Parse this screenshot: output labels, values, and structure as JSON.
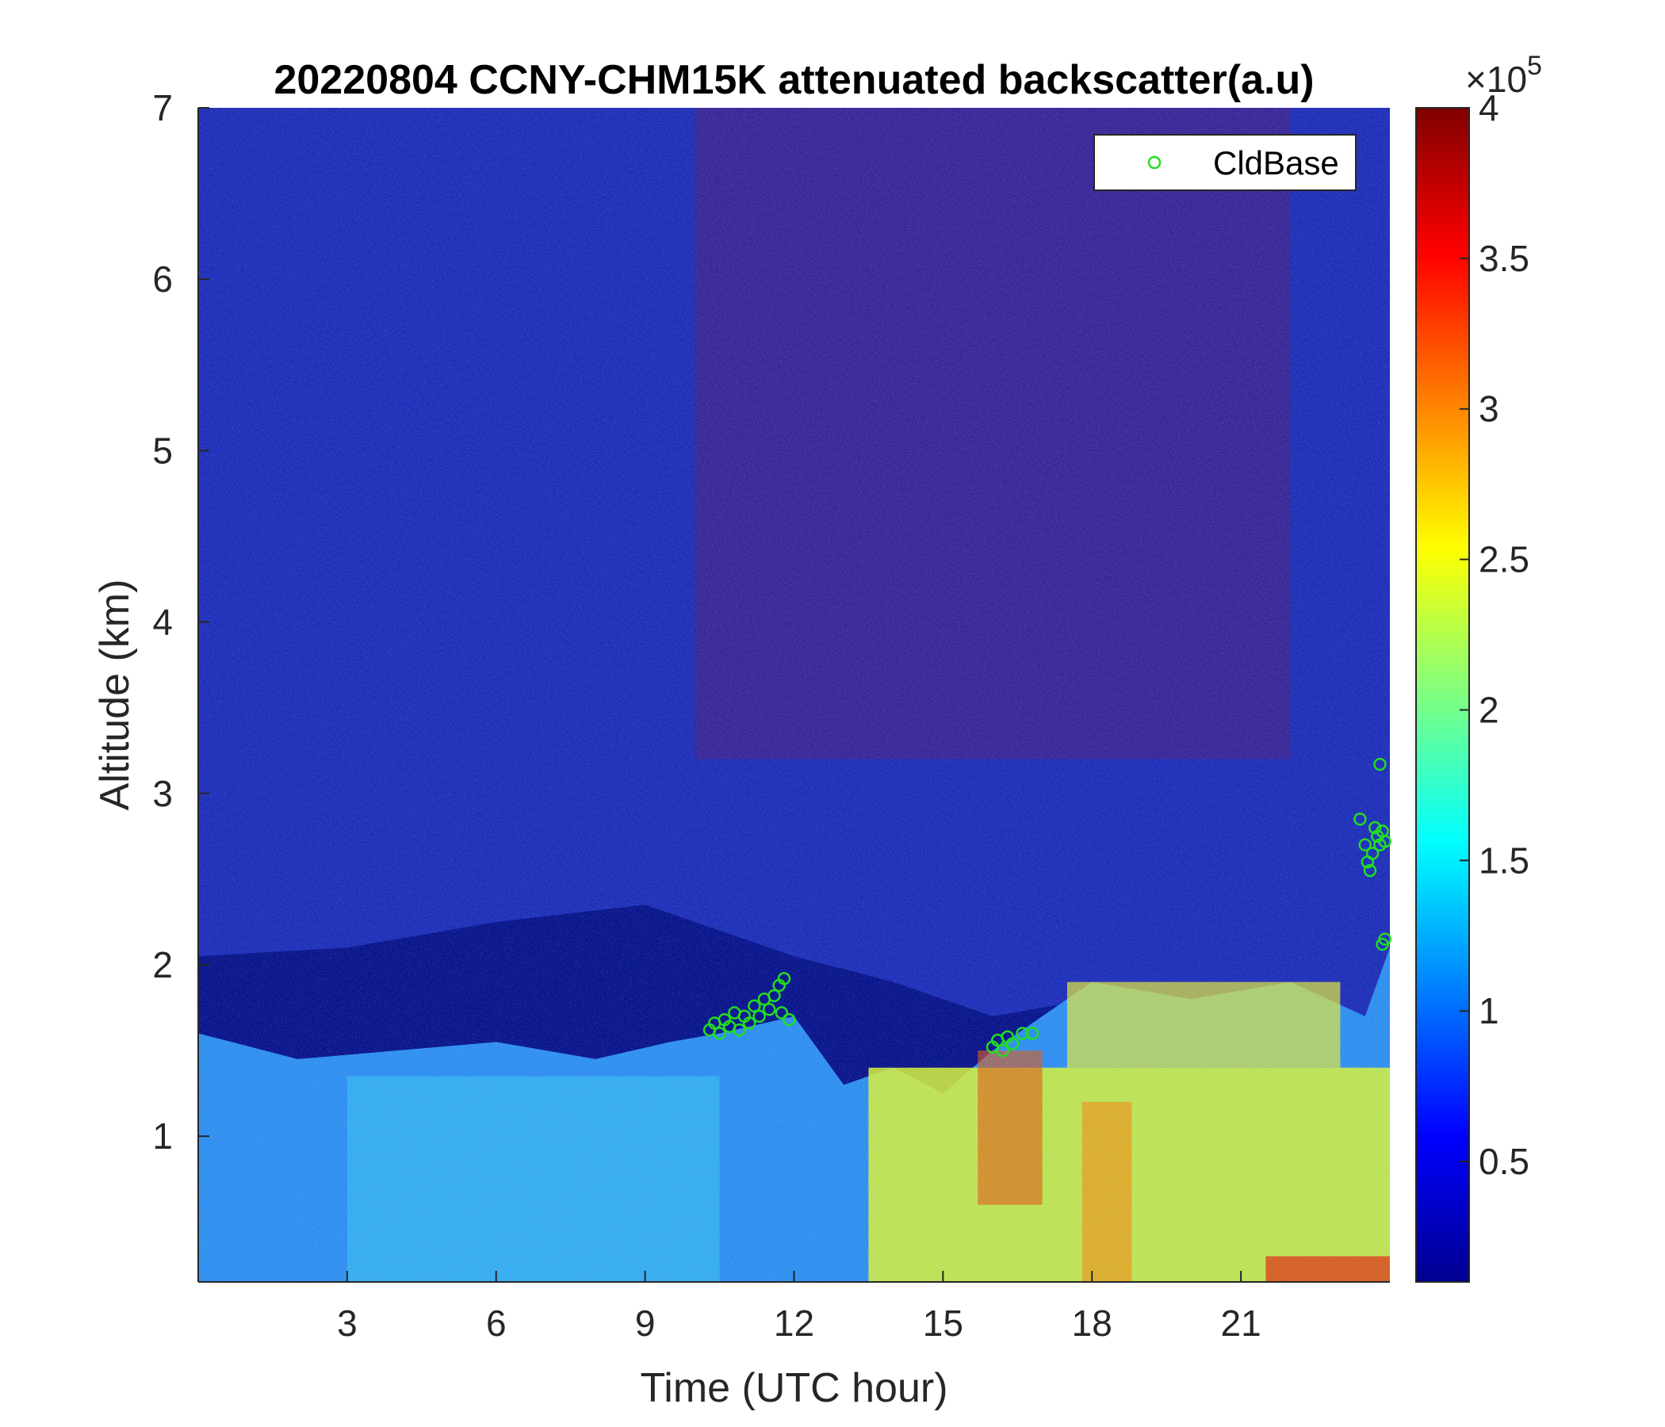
{
  "chart_data": {
    "type": "heatmap",
    "title": "20220804 CCNY-CHM15K attenuated backscatter(a.u)",
    "xlabel": "Time (UTC hour)",
    "ylabel": "Altitude (km)",
    "xlim": [
      0,
      24
    ],
    "ylim": [
      0.15,
      7
    ],
    "xticks": [
      3,
      6,
      9,
      12,
      15,
      18,
      21
    ],
    "xtick_labels": [
      "3",
      "6",
      "9",
      "12",
      "15",
      "18",
      "21"
    ],
    "yticks": [
      1,
      2,
      3,
      4,
      5,
      6,
      7
    ],
    "ytick_labels": [
      "1",
      "2",
      "3",
      "4",
      "5",
      "6",
      "7"
    ],
    "colorbar": {
      "colormap": "jet",
      "range": [
        0.1,
        4.0
      ],
      "multiplier": "×10",
      "exponent": "5",
      "ticks": [
        0.5,
        1,
        1.5,
        2,
        2.5,
        3,
        3.5,
        4
      ],
      "tick_labels": [
        "0.5",
        "1",
        "1.5",
        "2",
        "2.5",
        "3",
        "3.5",
        "4"
      ]
    },
    "legend": {
      "placement": "top-right",
      "entries": [
        "CldBase"
      ]
    },
    "series": [
      {
        "name": "CldBase",
        "marker": "circle",
        "color": "#22dd22",
        "points": [
          [
            10.3,
            1.62
          ],
          [
            10.4,
            1.66
          ],
          [
            10.5,
            1.6
          ],
          [
            10.6,
            1.68
          ],
          [
            10.7,
            1.64
          ],
          [
            10.8,
            1.72
          ],
          [
            10.9,
            1.62
          ],
          [
            11.0,
            1.7
          ],
          [
            11.1,
            1.66
          ],
          [
            11.2,
            1.76
          ],
          [
            11.3,
            1.7
          ],
          [
            11.4,
            1.8
          ],
          [
            11.5,
            1.74
          ],
          [
            11.6,
            1.82
          ],
          [
            11.7,
            1.88
          ],
          [
            11.8,
            1.92
          ],
          [
            11.9,
            1.68
          ],
          [
            11.75,
            1.72
          ],
          [
            16.0,
            1.52
          ],
          [
            16.1,
            1.56
          ],
          [
            16.2,
            1.5
          ],
          [
            16.3,
            1.58
          ],
          [
            16.4,
            1.54
          ],
          [
            16.6,
            1.6
          ],
          [
            16.8,
            1.6
          ],
          [
            23.4,
            2.85
          ],
          [
            23.5,
            2.7
          ],
          [
            23.55,
            2.6
          ],
          [
            23.6,
            2.55
          ],
          [
            23.65,
            2.65
          ],
          [
            23.7,
            2.8
          ],
          [
            23.75,
            2.75
          ],
          [
            23.8,
            2.7
          ],
          [
            23.85,
            2.78
          ],
          [
            23.9,
            2.72
          ],
          [
            23.8,
            3.17
          ],
          [
            23.85,
            2.12
          ],
          [
            23.9,
            2.15
          ]
        ]
      }
    ],
    "field_description_points": {
      "boundary_layer_top_km": [
        [
          0,
          1.6
        ],
        [
          2,
          1.45
        ],
        [
          4,
          1.5
        ],
        [
          6,
          1.55
        ],
        [
          8,
          1.45
        ],
        [
          9.5,
          1.55
        ],
        [
          10.5,
          1.6
        ],
        [
          12,
          1.7
        ],
        [
          13,
          1.3
        ],
        [
          14,
          1.4
        ],
        [
          15,
          1.25
        ],
        [
          16,
          1.5
        ],
        [
          18,
          1.9
        ],
        [
          20,
          1.8
        ],
        [
          22,
          1.9
        ],
        [
          23.5,
          1.7
        ],
        [
          24,
          2.1
        ]
      ],
      "dark_layer_top_km": [
        [
          0,
          2.05
        ],
        [
          3,
          2.1
        ],
        [
          6,
          2.25
        ],
        [
          9,
          2.35
        ],
        [
          10,
          2.25
        ],
        [
          12,
          2.05
        ],
        [
          14,
          1.9
        ],
        [
          16,
          1.7
        ],
        [
          18,
          1.8
        ]
      ]
    }
  }
}
